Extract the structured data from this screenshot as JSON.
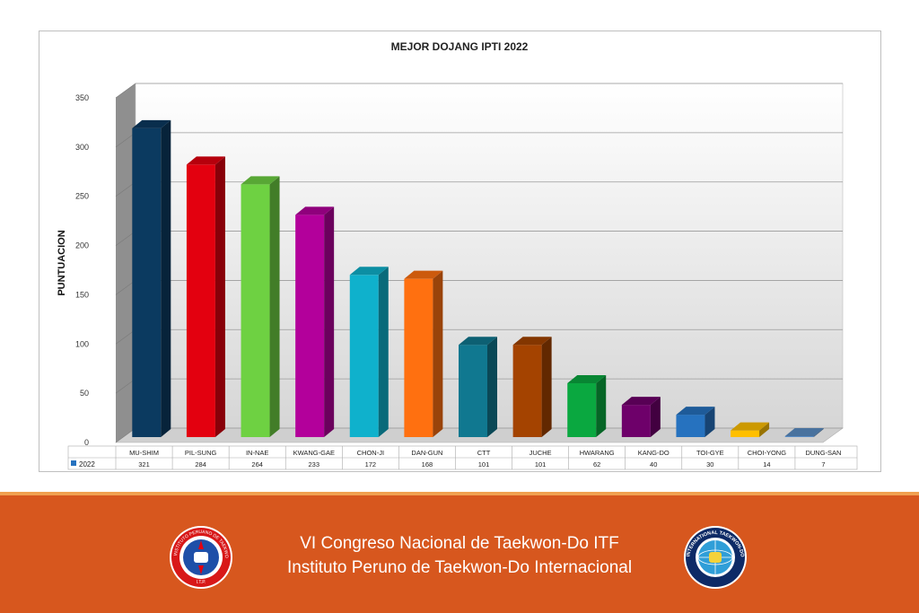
{
  "chart_data": {
    "type": "bar",
    "title": "MEJOR DOJANG IPTI 2022",
    "ylabel": "PUNTUACION",
    "xlabel": "",
    "ylim": [
      0,
      350
    ],
    "yticks": [
      0,
      50,
      100,
      150,
      200,
      250,
      300,
      350
    ],
    "grid": true,
    "categories": [
      "MU-SHIM",
      "PIL-SUNG",
      "IN-NAE",
      "KWANG-GAE",
      "CHON-JI",
      "DAN-GUN",
      "CTT",
      "JUCHE",
      "HWARANG",
      "KANG-DO",
      "TOI-GYE",
      "CHOI-YONG",
      "DUNG-SAN"
    ],
    "series": [
      {
        "name": "2022",
        "values": [
          321,
          284,
          264,
          233,
          172,
          168,
          101,
          101,
          62,
          40,
          30,
          14,
          7
        ]
      }
    ],
    "bar_colors": [
      "#0b3a60",
      "#e3000f",
      "#6ed142",
      "#b3009b",
      "#0fb1cc",
      "#ff7010",
      "#107890",
      "#a44300",
      "#0aa840",
      "#6e006a",
      "#2672bf",
      "#ffbf00",
      "#5b8ec6"
    ],
    "data_table": true
  },
  "footer": {
    "line1": "VI Congreso Nacional de Taekwon-Do ITF",
    "line2": "Instituto Peruno de Taekwon-Do Internacional",
    "bg_color": "#d7571e"
  },
  "logos": {
    "left": {
      "icon": "ipti-seal-icon",
      "text": "INSTITUTO PERUANO DE TAEKWON-DO INTERNACIONAL",
      "abbr": "I.T.P."
    },
    "right": {
      "icon": "itf-seal-icon",
      "text": "INTERNATIONAL TAEKWON-DO FEDERATION"
    }
  }
}
